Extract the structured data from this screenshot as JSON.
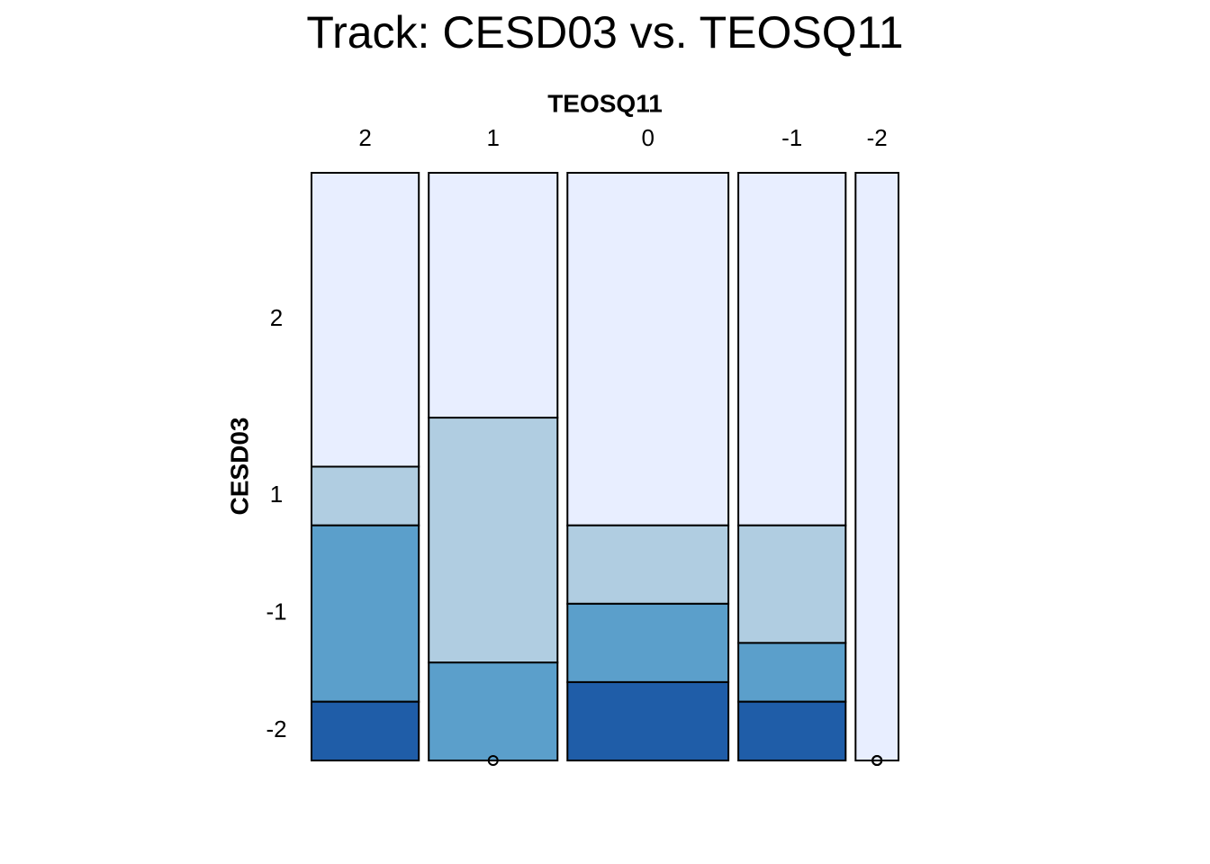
{
  "chart_data": {
    "type": "mosaic",
    "title": "Track: CESD03 vs. TEOSQ11",
    "xlabel": "TEOSQ11",
    "ylabel": "CESD03",
    "categories": [
      "2",
      "1",
      "0",
      "-1",
      "-2"
    ],
    "series": [
      {
        "name": "2",
        "color": "#e8eeff",
        "values": [
          5,
          5,
          9,
          6,
          4
        ]
      },
      {
        "name": "1",
        "color": "#b0cde1",
        "values": [
          1,
          5,
          2,
          2,
          0
        ]
      },
      {
        "name": "-1",
        "color": "#5b9fcb",
        "values": [
          3,
          2,
          2,
          1,
          0
        ]
      },
      {
        "name": "-2",
        "color": "#1f5da8",
        "values": [
          1,
          0,
          2,
          1,
          0
        ]
      }
    ]
  }
}
